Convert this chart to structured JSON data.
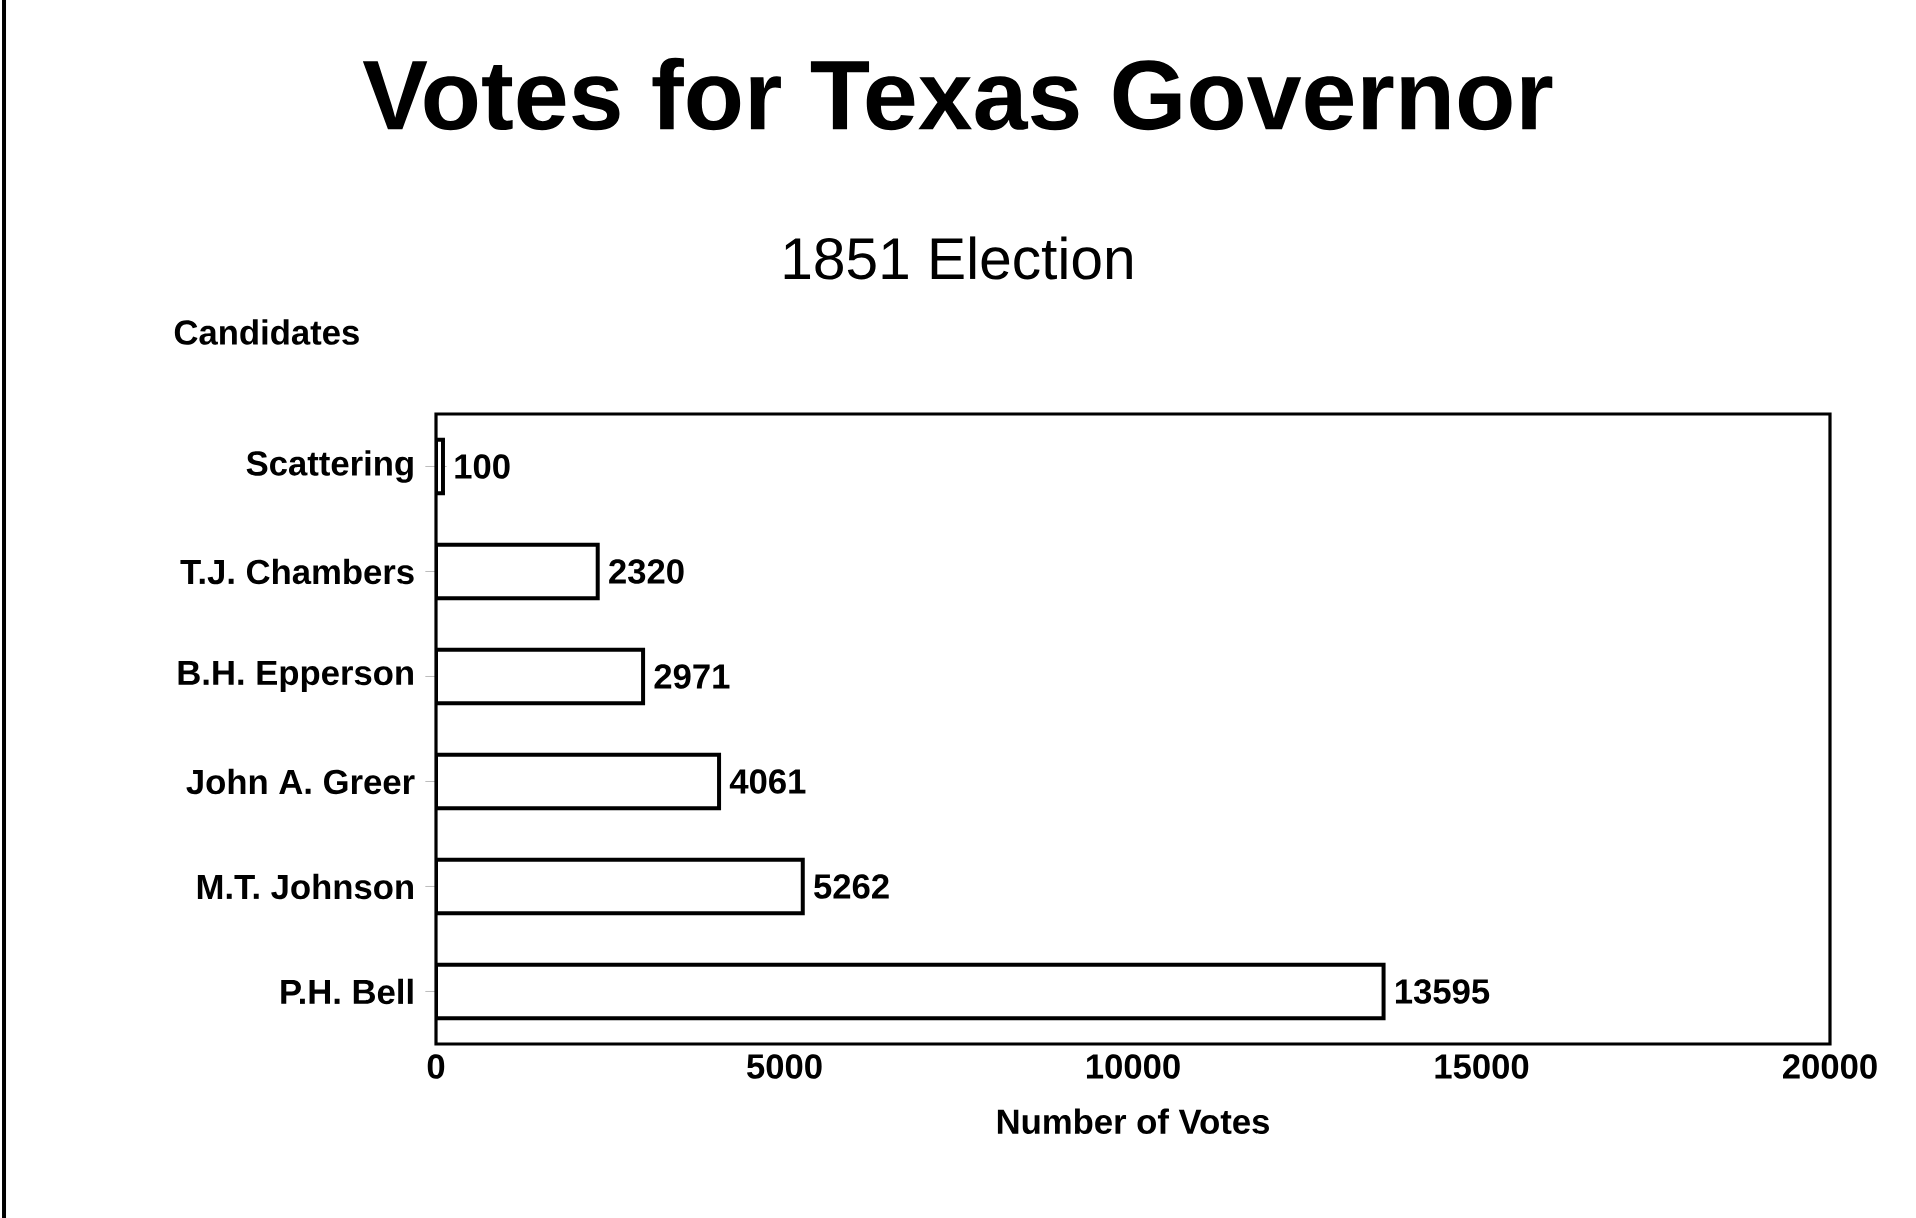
{
  "chart_data": {
    "type": "bar",
    "orientation": "horizontal",
    "title": "Votes for Texas Governor",
    "subtitle": "1851 Election",
    "ylabel": "Candidates",
    "xlabel": "Number of Votes",
    "categories": [
      "Scattering",
      "T.J. Chambers",
      "B.H. Epperson",
      "John A. Greer",
      "M.T. Johnson",
      "P.H. Bell"
    ],
    "values": [
      100,
      2320,
      2971,
      4061,
      5262,
      13595
    ],
    "color": "#ffffff",
    "data_labels": true,
    "xlim": [
      0,
      20000
    ],
    "xticks": [
      0,
      5000,
      10000,
      15000,
      20000
    ]
  }
}
